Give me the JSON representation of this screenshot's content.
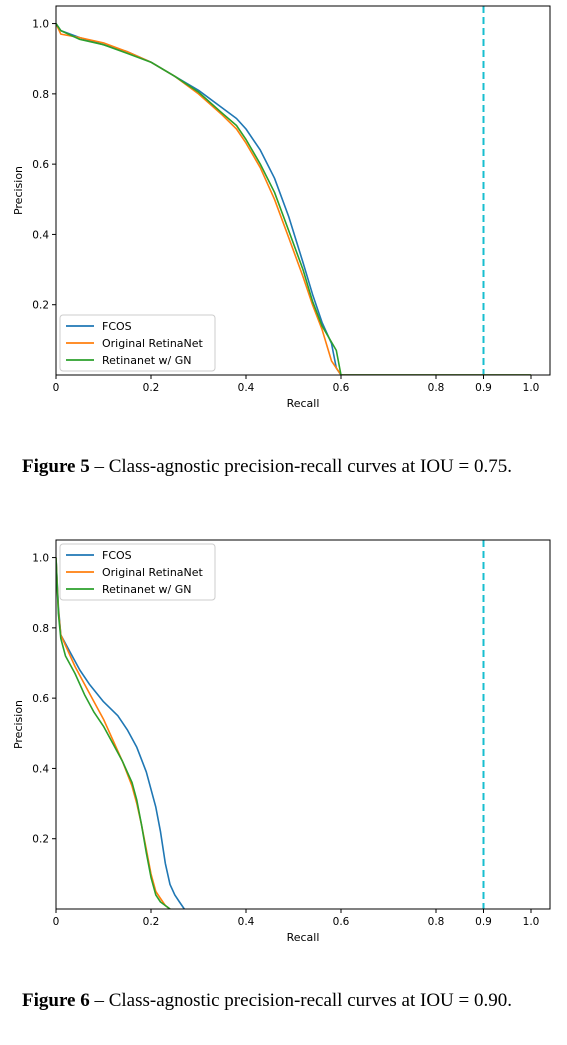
{
  "figures": [
    {
      "caption_label": "Figure 5",
      "caption_text": "– Class-agnostic precision-recall curves at IOU = 0.75.",
      "chart_data": {
        "type": "line",
        "title": "",
        "xlabel": "Recall",
        "ylabel": "Precision",
        "xlim": [
          0,
          1.04
        ],
        "ylim": [
          0,
          1.05
        ],
        "xticks": [
          0,
          0.2,
          0.4,
          0.6,
          0.8,
          0.9,
          1.0
        ],
        "xtick_labels": [
          "0",
          "0.2",
          "0.4",
          "0.6",
          "0.8",
          "0.9",
          "1.0"
        ],
        "yticks": [
          0.2,
          0.4,
          0.6,
          0.8,
          1.0
        ],
        "ytick_labels": [
          "0.2",
          "0.4",
          "0.6",
          "0.8",
          "1.0"
        ],
        "grid": false,
        "legend_position": "lower-left",
        "reference_line": {
          "x": 0.9,
          "style": "dashed",
          "color": "#17becf"
        },
        "series": [
          {
            "name": "FCOS",
            "color": "#1f77b4",
            "x": [
              0,
              0.01,
              0.05,
              0.1,
              0.15,
              0.2,
              0.25,
              0.3,
              0.35,
              0.38,
              0.4,
              0.43,
              0.46,
              0.49,
              0.52,
              0.54,
              0.56,
              0.58,
              0.59,
              0.6,
              0.65,
              0.8,
              1.0
            ],
            "y": [
              1.0,
              0.98,
              0.96,
              0.94,
              0.92,
              0.89,
              0.85,
              0.81,
              0.76,
              0.73,
              0.7,
              0.64,
              0.56,
              0.45,
              0.32,
              0.23,
              0.15,
              0.09,
              0.02,
              0.0,
              0.0,
              0.0,
              0.0
            ]
          },
          {
            "name": "Original RetinaNet",
            "color": "#ff7f0e",
            "x": [
              0,
              0.01,
              0.05,
              0.1,
              0.15,
              0.2,
              0.25,
              0.3,
              0.35,
              0.38,
              0.4,
              0.43,
              0.46,
              0.49,
              0.52,
              0.54,
              0.56,
              0.58,
              0.6,
              0.65,
              0.8,
              1.0
            ],
            "y": [
              1.0,
              0.97,
              0.96,
              0.945,
              0.92,
              0.89,
              0.85,
              0.8,
              0.74,
              0.7,
              0.66,
              0.59,
              0.5,
              0.39,
              0.28,
              0.2,
              0.13,
              0.04,
              0.0,
              0.0,
              0.0,
              0.0
            ]
          },
          {
            "name": "Retinanet w/ GN",
            "color": "#2ca02c",
            "x": [
              0,
              0.01,
              0.05,
              0.1,
              0.15,
              0.2,
              0.25,
              0.3,
              0.35,
              0.38,
              0.4,
              0.43,
              0.46,
              0.49,
              0.52,
              0.54,
              0.56,
              0.59,
              0.6,
              0.65,
              0.8,
              1.0
            ],
            "y": [
              1.0,
              0.98,
              0.955,
              0.94,
              0.915,
              0.89,
              0.85,
              0.805,
              0.745,
              0.71,
              0.67,
              0.6,
              0.52,
              0.41,
              0.3,
              0.21,
              0.14,
              0.07,
              0.0,
              0.0,
              0.0,
              0.0
            ]
          }
        ]
      }
    },
    {
      "caption_label": "Figure 6",
      "caption_text": "– Class-agnostic precision-recall curves at IOU = 0.90.",
      "chart_data": {
        "type": "line",
        "title": "",
        "xlabel": "Recall",
        "ylabel": "Precision",
        "xlim": [
          0,
          1.04
        ],
        "ylim": [
          0,
          1.05
        ],
        "xticks": [
          0,
          0.2,
          0.4,
          0.6,
          0.8,
          0.9,
          1.0
        ],
        "xtick_labels": [
          "0",
          "0.2",
          "0.4",
          "0.6",
          "0.8",
          "0.9",
          "1.0"
        ],
        "yticks": [
          0.2,
          0.4,
          0.6,
          0.8,
          1.0
        ],
        "ytick_labels": [
          "0.2",
          "0.4",
          "0.6",
          "0.8",
          "1.0"
        ],
        "grid": false,
        "legend_position": "upper-left",
        "reference_line": {
          "x": 0.9,
          "style": "dashed",
          "color": "#17becf"
        },
        "series": [
          {
            "name": "FCOS",
            "color": "#1f77b4",
            "x": [
              0,
              0.005,
              0.01,
              0.03,
              0.05,
              0.07,
              0.1,
              0.13,
              0.15,
              0.17,
              0.19,
              0.21,
              0.22,
              0.23,
              0.24,
              0.25,
              0.26,
              0.27
            ],
            "y": [
              1.0,
              0.86,
              0.78,
              0.73,
              0.68,
              0.64,
              0.59,
              0.55,
              0.51,
              0.46,
              0.39,
              0.29,
              0.22,
              0.13,
              0.07,
              0.04,
              0.02,
              0.0
            ]
          },
          {
            "name": "Original RetinaNet",
            "color": "#ff7f0e",
            "x": [
              0,
              0.005,
              0.01,
              0.02,
              0.04,
              0.06,
              0.08,
              0.1,
              0.12,
              0.14,
              0.16,
              0.17,
              0.18,
              0.19,
              0.2,
              0.21,
              0.22,
              0.23,
              0.24
            ],
            "y": [
              1.0,
              0.85,
              0.78,
              0.75,
              0.69,
              0.64,
              0.59,
              0.54,
              0.48,
              0.42,
              0.35,
              0.3,
              0.24,
              0.17,
              0.1,
              0.05,
              0.03,
              0.01,
              0.0
            ]
          },
          {
            "name": "Retinanet w/ GN",
            "color": "#2ca02c",
            "x": [
              0,
              0.005,
              0.01,
              0.02,
              0.04,
              0.06,
              0.08,
              0.1,
              0.12,
              0.14,
              0.16,
              0.17,
              0.18,
              0.19,
              0.2,
              0.21,
              0.22,
              0.23,
              0.24
            ],
            "y": [
              1.0,
              0.84,
              0.77,
              0.72,
              0.67,
              0.61,
              0.56,
              0.52,
              0.47,
              0.42,
              0.36,
              0.31,
              0.24,
              0.16,
              0.09,
              0.04,
              0.02,
              0.01,
              0.0
            ]
          }
        ]
      }
    }
  ]
}
